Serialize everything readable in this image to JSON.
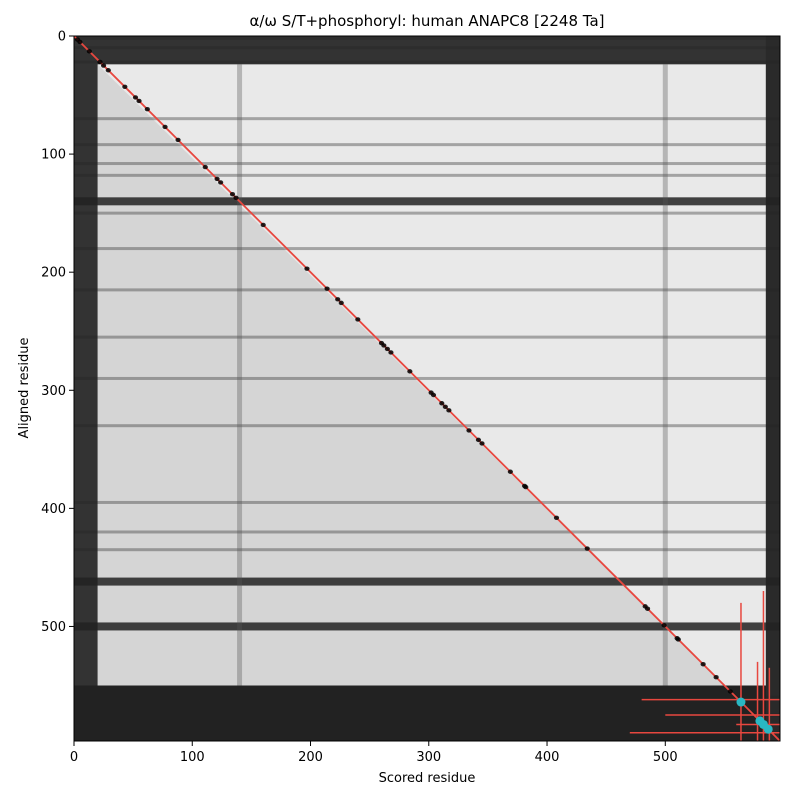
{
  "chart_data": {
    "type": "heatmap",
    "title": "α/ω S/T+phosphoryl: human ANAPC8 [2248 Ta]",
    "xlabel": "Scored residue",
    "ylabel": "Aligned residue",
    "xlim": [
      0,
      597
    ],
    "ylim": [
      597,
      0
    ],
    "xticks": [
      "0",
      "100",
      "200",
      "300",
      "400",
      "500"
    ],
    "yticks": [
      "0",
      "100",
      "200",
      "300",
      "400",
      "500"
    ],
    "grid": false,
    "colormap": "grayscale (white = high, black = low)",
    "dark_rows": [
      2,
      10,
      22,
      70,
      92,
      108,
      118,
      140,
      150,
      180,
      215,
      255,
      290,
      330,
      395,
      420,
      435,
      462,
      500,
      560,
      575,
      590
    ],
    "dark_columns": [
      140,
      500
    ],
    "diagonal": {
      "x": [
        0,
        597
      ],
      "y": [
        0,
        597
      ],
      "color": "#e8473f"
    },
    "phospho_sites": [
      3,
      5,
      13,
      22,
      25,
      29,
      43,
      52,
      55,
      62,
      77,
      88,
      111,
      121,
      124,
      134,
      137,
      160,
      197,
      214,
      223,
      226,
      240,
      260,
      262,
      265,
      268,
      284,
      302,
      304,
      311,
      314,
      317,
      334,
      342,
      345,
      369,
      381,
      382,
      408,
      434,
      483,
      485,
      499,
      510,
      511,
      532,
      543,
      555
    ],
    "phospho_color": "#000000",
    "highlighted_sites": [
      564,
      580,
      583,
      587
    ],
    "highlight_color": "#2ab7c3",
    "error_bars": [
      {
        "x": 564,
        "y": 562,
        "x_range": [
          480,
          600
        ],
        "y_range": [
          480,
          597
        ]
      },
      {
        "x": 578,
        "y": 575,
        "x_range": [
          500,
          597
        ],
        "y_range": [
          530,
          597
        ]
      },
      {
        "x": 583,
        "y": 583,
        "x_range": [
          560,
          597
        ],
        "y_range": [
          470,
          597
        ]
      },
      {
        "x": 588,
        "y": 590,
        "x_range": [
          470,
          597
        ],
        "y_range": [
          535,
          597
        ]
      }
    ],
    "error_bar_color": "#e8473f"
  }
}
